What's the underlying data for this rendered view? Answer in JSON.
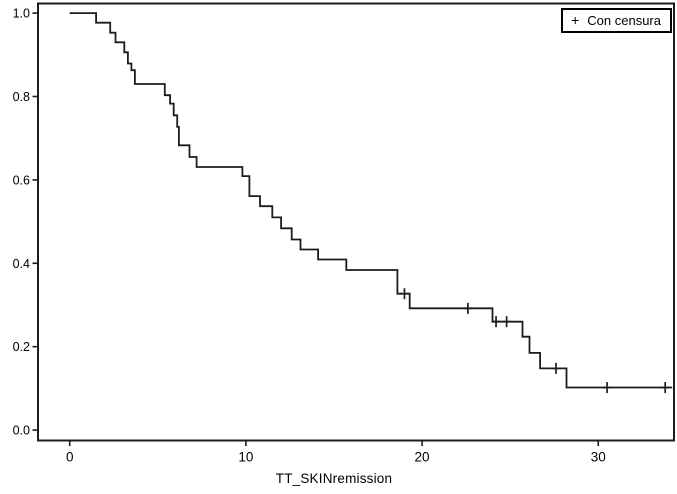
{
  "chart_data": {
    "type": "line",
    "subtype": "kaplan-meier-survival-step",
    "title": "",
    "xlabel": "TT_SKINremission",
    "ylabel": "",
    "xlim": [
      -1.8,
      34.3
    ],
    "ylim": [
      -0.025,
      1.023
    ],
    "x_ticks": [
      0,
      10,
      20,
      30
    ],
    "y_ticks": [
      0.0,
      0.2,
      0.4,
      0.6,
      0.8,
      1.0
    ],
    "grid": false,
    "plot_bg": "#ffffff",
    "line_color": "#1c1c1c",
    "frame_color": "#1c1c1c",
    "legend": {
      "position": "top-right",
      "marker": "+",
      "label": "Con censura"
    },
    "series": [
      {
        "name": "survival",
        "steps": [
          {
            "t": 0.0,
            "s": 1.0
          },
          {
            "t": 1.5,
            "s": 0.977
          },
          {
            "t": 2.3,
            "s": 0.953
          },
          {
            "t": 2.6,
            "s": 0.93
          },
          {
            "t": 3.1,
            "s": 0.906
          },
          {
            "t": 3.3,
            "s": 0.879
          },
          {
            "t": 3.5,
            "s": 0.863
          },
          {
            "t": 3.7,
            "s": 0.83
          },
          {
            "t": 5.4,
            "s": 0.803
          },
          {
            "t": 5.7,
            "s": 0.783
          },
          {
            "t": 5.9,
            "s": 0.755
          },
          {
            "t": 6.1,
            "s": 0.727
          },
          {
            "t": 6.2,
            "s": 0.683
          },
          {
            "t": 6.8,
            "s": 0.655
          },
          {
            "t": 7.2,
            "s": 0.631
          },
          {
            "t": 9.8,
            "s": 0.609
          },
          {
            "t": 10.2,
            "s": 0.561
          },
          {
            "t": 10.8,
            "s": 0.537
          },
          {
            "t": 11.5,
            "s": 0.51
          },
          {
            "t": 12.0,
            "s": 0.484
          },
          {
            "t": 12.6,
            "s": 0.457
          },
          {
            "t": 13.1,
            "s": 0.433
          },
          {
            "t": 14.1,
            "s": 0.409
          },
          {
            "t": 15.7,
            "s": 0.384
          },
          {
            "t": 18.6,
            "s": 0.327
          },
          {
            "t": 19.3,
            "s": 0.292
          },
          {
            "t": 24.0,
            "s": 0.26
          },
          {
            "t": 25.7,
            "s": 0.224
          },
          {
            "t": 26.1,
            "s": 0.185
          },
          {
            "t": 26.7,
            "s": 0.148
          },
          {
            "t": 28.2,
            "s": 0.102
          }
        ],
        "end_time": 34.2
      }
    ],
    "censored": [
      {
        "t": 19.0,
        "s": 0.327
      },
      {
        "t": 22.6,
        "s": 0.292
      },
      {
        "t": 24.2,
        "s": 0.26
      },
      {
        "t": 24.8,
        "s": 0.26
      },
      {
        "t": 27.6,
        "s": 0.148
      },
      {
        "t": 30.5,
        "s": 0.102
      },
      {
        "t": 33.8,
        "s": 0.102
      }
    ]
  }
}
